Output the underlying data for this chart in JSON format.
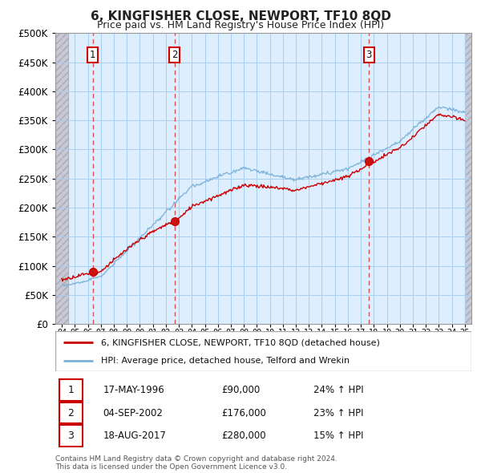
{
  "title": "6, KINGFISHER CLOSE, NEWPORT, TF10 8QD",
  "subtitle": "Price paid vs. HM Land Registry's House Price Index (HPI)",
  "title_color": "#222222",
  "background_color": "#ffffff",
  "plot_bg_color": "#ddeeff",
  "grid_color": "#aaccee",
  "red_line_color": "#cc0000",
  "blue_line_color": "#7ab0d4",
  "dashed_line_color": "#dd3333",
  "ylim": [
    0,
    500000
  ],
  "yticks": [
    0,
    50000,
    100000,
    150000,
    200000,
    250000,
    300000,
    350000,
    400000,
    450000,
    500000
  ],
  "sale_points": [
    {
      "year": 1996.38,
      "price": 90000,
      "label": "1"
    },
    {
      "year": 2002.67,
      "price": 176000,
      "label": "2"
    },
    {
      "year": 2017.63,
      "price": 280000,
      "label": "3"
    }
  ],
  "sale_labels": [
    {
      "label": "1",
      "date": "17-MAY-1996",
      "price": "£90,000",
      "hpi": "24% ↑ HPI"
    },
    {
      "label": "2",
      "date": "04-SEP-2002",
      "price": "£176,000",
      "hpi": "23% ↑ HPI"
    },
    {
      "label": "3",
      "date": "18-AUG-2017",
      "price": "£280,000",
      "hpi": "15% ↑ HPI"
    }
  ],
  "legend_line1": "6, KINGFISHER CLOSE, NEWPORT, TF10 8QD (detached house)",
  "legend_line2": "HPI: Average price, detached house, Telford and Wrekin",
  "footer": "Contains HM Land Registry data © Crown copyright and database right 2024.\nThis data is licensed under the Open Government Licence v3.0.",
  "xmin": 1993.5,
  "xmax": 2025.5,
  "hatch_start": 1993.5,
  "hatch_end": 1994.5,
  "hatch_right_start": 2025.0,
  "hatch_right_end": 2025.5
}
